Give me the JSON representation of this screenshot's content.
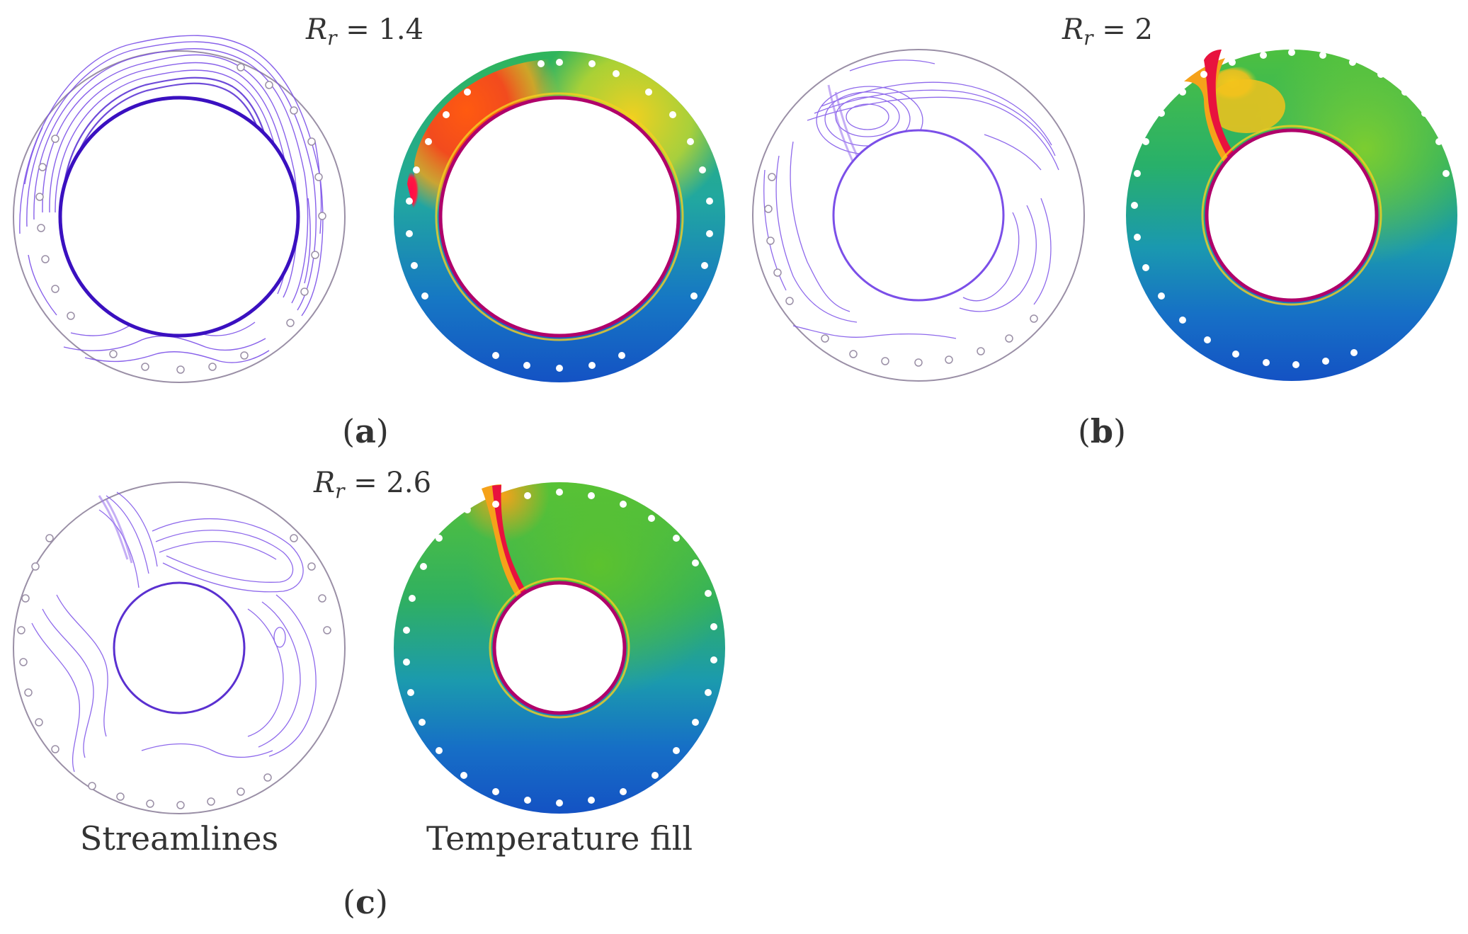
{
  "panels": [
    {
      "id": "a",
      "label": "a",
      "ratio_symbol": "R",
      "ratio_subscript": "r",
      "ratio_text": " = 1.4",
      "ratio": 1.4
    },
    {
      "id": "b",
      "label": "b",
      "ratio_symbol": "R",
      "ratio_subscript": "r",
      "ratio_text": " = 2",
      "ratio": 2
    },
    {
      "id": "c",
      "label": "c",
      "ratio_symbol": "R",
      "ratio_subscript": "r",
      "ratio_text": " = 2.6",
      "ratio": 2.6
    }
  ],
  "captions": {
    "streamlines": "Streamlines",
    "temperature": "Temperature fill"
  },
  "colors": {
    "streamline": "#7b4fe8",
    "streamline_dense": "#4a1fd0",
    "outline": "#9a8fa6",
    "hot": "#e8123e",
    "warm": "#f5a21a",
    "mid": "#39c04a",
    "cool": "#1b8fb5",
    "cold": "#1457c6",
    "inner_wall": "#b0006a"
  }
}
